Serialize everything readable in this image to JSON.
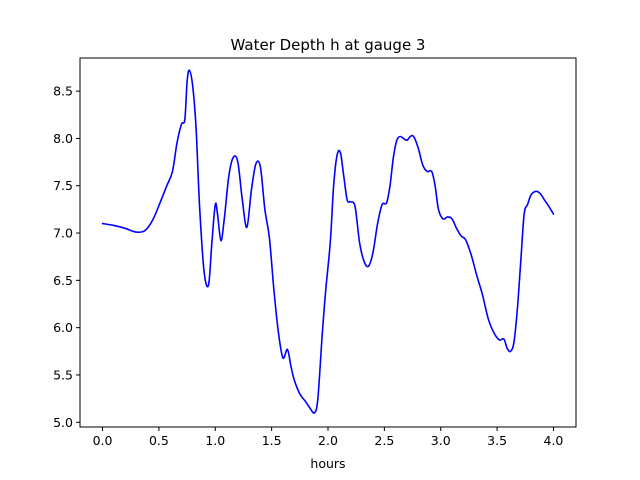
{
  "chart_data": {
    "type": "line",
    "title": "Water Depth h at gauge 3",
    "xlabel": "hours",
    "ylabel": "",
    "xlim": [
      -0.2,
      4.2
    ],
    "ylim": [
      4.95,
      8.85
    ],
    "xticks": [
      0.0,
      0.5,
      1.0,
      1.5,
      2.0,
      2.5,
      3.0,
      3.5,
      4.0
    ],
    "xtick_labels": [
      "0.0",
      "0.5",
      "1.0",
      "1.5",
      "2.0",
      "2.5",
      "3.0",
      "3.5",
      "4.0"
    ],
    "yticks": [
      5.0,
      5.5,
      6.0,
      6.5,
      7.0,
      7.5,
      8.0,
      8.5
    ],
    "ytick_labels": [
      "5.0",
      "5.5",
      "6.0",
      "6.5",
      "7.0",
      "7.5",
      "8.0",
      "8.5"
    ],
    "grid": false,
    "series": [
      {
        "color": "#0000ff",
        "x": [
          0.0,
          0.1,
          0.2,
          0.3,
          0.38,
          0.45,
          0.52,
          0.57,
          0.62,
          0.66,
          0.7,
          0.73,
          0.75,
          0.77,
          0.8,
          0.83,
          0.86,
          0.9,
          0.94,
          0.97,
          1.0,
          1.02,
          1.05,
          1.08,
          1.12,
          1.16,
          1.2,
          1.24,
          1.28,
          1.32,
          1.36,
          1.4,
          1.44,
          1.48,
          1.52,
          1.56,
          1.6,
          1.64,
          1.67,
          1.7,
          1.75,
          1.8,
          1.84,
          1.88,
          1.91,
          1.95,
          1.98,
          2.02,
          2.05,
          2.08,
          2.11,
          2.14,
          2.17,
          2.2,
          2.24,
          2.28,
          2.32,
          2.36,
          2.4,
          2.44,
          2.48,
          2.52,
          2.55,
          2.58,
          2.61,
          2.64,
          2.67,
          2.7,
          2.73,
          2.76,
          2.8,
          2.84,
          2.88,
          2.92,
          2.95,
          2.98,
          3.02,
          3.06,
          3.1,
          3.14,
          3.18,
          3.22,
          3.27,
          3.32,
          3.37,
          3.42,
          3.47,
          3.52,
          3.56,
          3.59,
          3.62,
          3.65,
          3.68,
          3.71,
          3.74,
          3.77,
          3.8,
          3.84,
          3.88,
          3.92,
          3.96,
          4.0
        ],
        "y": [
          7.1,
          7.08,
          7.05,
          7.01,
          7.03,
          7.15,
          7.35,
          7.5,
          7.65,
          7.95,
          8.15,
          8.2,
          8.6,
          8.72,
          8.55,
          8.1,
          7.3,
          6.6,
          6.45,
          6.9,
          7.3,
          7.2,
          6.92,
          7.15,
          7.6,
          7.8,
          7.75,
          7.35,
          7.06,
          7.45,
          7.73,
          7.7,
          7.25,
          6.95,
          6.4,
          5.95,
          5.68,
          5.77,
          5.6,
          5.45,
          5.3,
          5.22,
          5.15,
          5.1,
          5.25,
          5.95,
          6.4,
          6.9,
          7.5,
          7.82,
          7.85,
          7.6,
          7.35,
          7.33,
          7.28,
          6.9,
          6.7,
          6.65,
          6.8,
          7.1,
          7.3,
          7.32,
          7.5,
          7.8,
          7.98,
          8.02,
          8.0,
          7.98,
          8.02,
          8.02,
          7.9,
          7.72,
          7.65,
          7.65,
          7.5,
          7.25,
          7.15,
          7.17,
          7.15,
          7.05,
          6.97,
          6.93,
          6.77,
          6.55,
          6.35,
          6.1,
          5.95,
          5.87,
          5.88,
          5.78,
          5.75,
          5.85,
          6.2,
          6.7,
          7.2,
          7.3,
          7.4,
          7.44,
          7.42,
          7.35,
          7.28,
          7.2
        ]
      }
    ]
  }
}
